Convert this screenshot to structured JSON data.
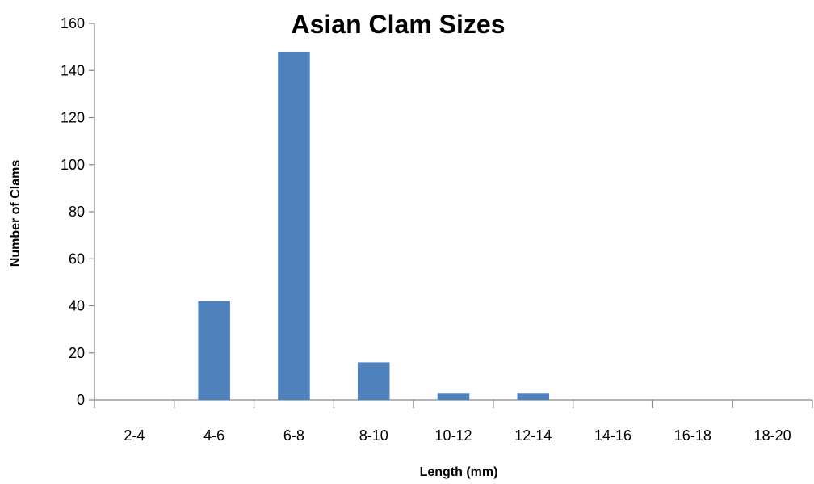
{
  "chart_data": {
    "type": "bar",
    "title": "Asian Clam Sizes",
    "xlabel": "Length (mm)",
    "ylabel": "Number of Clams",
    "categories": [
      "2-4",
      "4-6",
      "6-8",
      "8-10",
      "10-12",
      "12-14",
      "14-16",
      "16-18",
      "18-20"
    ],
    "values": [
      0,
      42,
      148,
      16,
      3,
      3,
      0,
      0,
      0
    ],
    "ylim": [
      0,
      160
    ],
    "yticks": [
      0,
      20,
      40,
      60,
      80,
      100,
      120,
      140,
      160
    ],
    "grid": false,
    "legend": "none",
    "colors": {
      "bar": "#4f81bd",
      "axis": "#868686",
      "text": "#000000"
    }
  }
}
